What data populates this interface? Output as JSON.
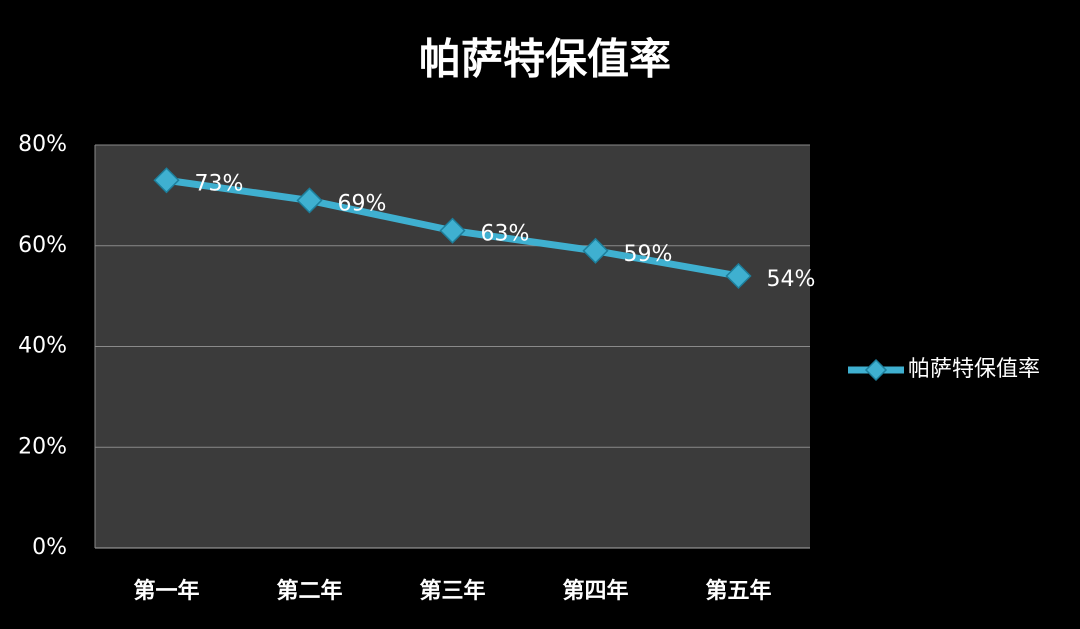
{
  "chart_data": {
    "type": "line",
    "title": "帕萨特保值率",
    "categories": [
      "第一年",
      "第二年",
      "第三年",
      "第四年",
      "第五年"
    ],
    "series": [
      {
        "name": "帕萨特保值率",
        "color": "#3fb0d0",
        "values": [
          73,
          69,
          63,
          59,
          54
        ],
        "value_labels": [
          "73%",
          "69%",
          "63%",
          "59%",
          "54%"
        ]
      }
    ],
    "ylim": [
      0,
      80
    ],
    "yticks": [
      {
        "value": 0,
        "label": "0%"
      },
      {
        "value": 20,
        "label": "20%"
      },
      {
        "value": 40,
        "label": "40%"
      },
      {
        "value": 60,
        "label": "60%"
      },
      {
        "value": 80,
        "label": "80%"
      }
    ],
    "grid": true,
    "legend": "right"
  }
}
